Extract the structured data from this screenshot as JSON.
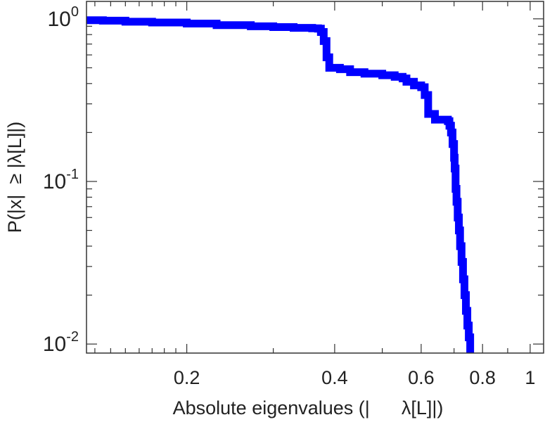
{
  "chart_data": {
    "type": "line",
    "title": "",
    "xlabel": "Absolute eigenvalues (|      λ[L]|)",
    "ylabel": "P(|x|  ≥ |λ[L]|)",
    "xscale": "log",
    "yscale": "log",
    "xlim": [
      0.125,
      1.065
    ],
    "ylim": [
      0.0088,
      1.28
    ],
    "grid": false,
    "legend": "none",
    "x_ticks": [
      {
        "value": 0.2,
        "label": "0.2"
      },
      {
        "value": 0.4,
        "label": "0.4"
      },
      {
        "value": 0.6,
        "label": "0.6"
      },
      {
        "value": 0.8,
        "label": "0.8"
      },
      {
        "value": 1.0,
        "label": "1"
      }
    ],
    "y_ticks": [
      {
        "value": 1.0,
        "base": "10",
        "exp": "0"
      },
      {
        "value": 0.1,
        "base": "10",
        "exp": "-1"
      },
      {
        "value": 0.01,
        "base": "10",
        "exp": "-2"
      }
    ],
    "series": [
      {
        "color": "#0000ff",
        "x": [
          0.125,
          0.135,
          0.15,
          0.17,
          0.2,
          0.23,
          0.27,
          0.3,
          0.33,
          0.36,
          0.37,
          0.375,
          0.38,
          0.385,
          0.39,
          0.41,
          0.43,
          0.46,
          0.5,
          0.53,
          0.55,
          0.56,
          0.58,
          0.6,
          0.61,
          0.62,
          0.64,
          0.67,
          0.68,
          0.685,
          0.69,
          0.695,
          0.7,
          0.702,
          0.705,
          0.708,
          0.712,
          0.716,
          0.72,
          0.725,
          0.73,
          0.735,
          0.74,
          0.745,
          0.75,
          0.755
        ],
        "y": [
          0.98,
          0.975,
          0.96,
          0.95,
          0.935,
          0.915,
          0.9,
          0.89,
          0.88,
          0.875,
          0.87,
          0.83,
          0.73,
          0.58,
          0.5,
          0.49,
          0.47,
          0.46,
          0.45,
          0.44,
          0.43,
          0.41,
          0.39,
          0.38,
          0.34,
          0.26,
          0.24,
          0.24,
          0.235,
          0.22,
          0.2,
          0.17,
          0.14,
          0.12,
          0.09,
          0.075,
          0.06,
          0.05,
          0.04,
          0.032,
          0.025,
          0.02,
          0.016,
          0.013,
          0.011,
          0.0088
        ]
      }
    ]
  }
}
